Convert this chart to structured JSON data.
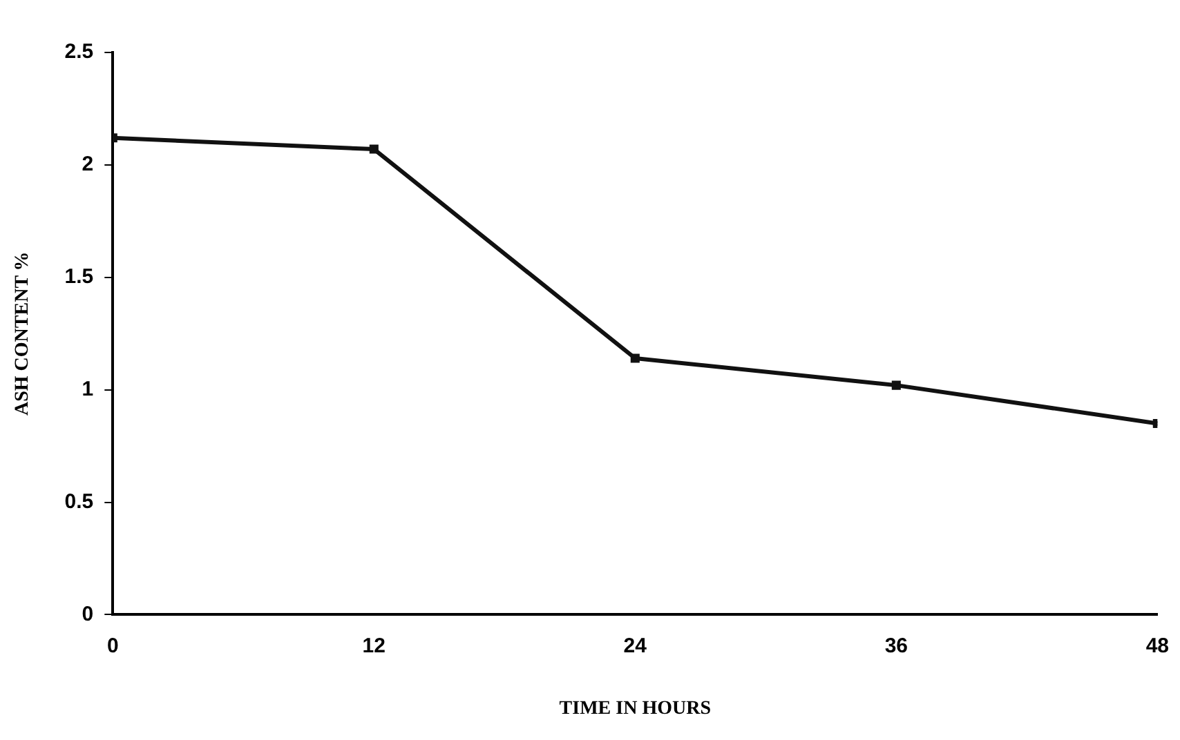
{
  "chart_data": {
    "type": "line",
    "xlabel": "TIME IN HOURS",
    "ylabel": "ASH CONTENT %",
    "x": [
      0,
      12,
      24,
      36,
      48
    ],
    "series": [
      {
        "color": "#111111",
        "values": [
          2.12,
          2.07,
          1.14,
          1.02,
          0.85
        ]
      }
    ],
    "xlim": [
      0,
      48
    ],
    "xticks": [
      0,
      12,
      24,
      36,
      48
    ],
    "ylim": [
      0,
      2.5
    ],
    "yticks": [
      0,
      0.5,
      1,
      1.5,
      2,
      2.5
    ],
    "grid": false,
    "legend": false,
    "marker": "square",
    "line_style": "solid"
  }
}
